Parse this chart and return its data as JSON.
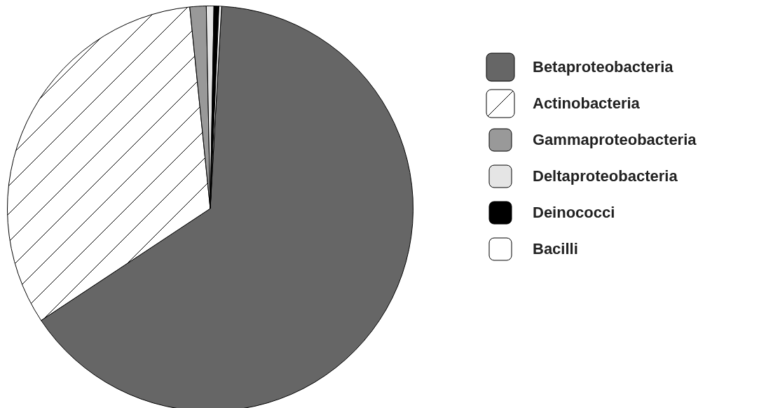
{
  "chart_data": {
    "type": "pie",
    "categories": [
      "Betaproteobacteria",
      "Actinobacteria",
      "Gammaproteobacteria",
      "Deltaproteobacteria",
      "Deinococci",
      "Bacilli"
    ],
    "values": [
      64.8,
      32.7,
      1.3,
      0.6,
      0.4,
      0.2
    ],
    "colors": [
      "#666666",
      "#ffffff",
      "#999999",
      "#e5e5e5",
      "#000000",
      "#ffffff"
    ],
    "legend": "right"
  }
}
